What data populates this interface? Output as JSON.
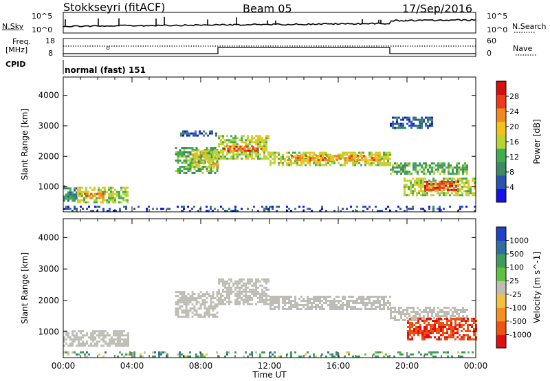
{
  "header": {
    "station": "Stokkseyri (fitACF)",
    "beam": "Beam 05",
    "date": "17/Sep/2016"
  },
  "noise_panel": {
    "left_label": "N.Sky",
    "right_label": "N.Search",
    "left_ticks": [
      "10^5",
      "10^0"
    ],
    "right_ticks": [
      "10^5",
      "10^0"
    ]
  },
  "freq_panel": {
    "left_label_line1": "Freq.",
    "left_label_line2": "[MHz]",
    "right_label": "Nave",
    "left_ticks": [
      "18",
      "8"
    ],
    "right_ticks": [
      "60",
      "0"
    ]
  },
  "cpid_panel": {
    "label": "CPID",
    "program": "normal (fast) 151"
  },
  "x_axis": {
    "title": "Time UT",
    "ticks": [
      "00:00",
      "04:00",
      "08:00",
      "12:00",
      "16:00",
      "20:00",
      "00:00"
    ]
  },
  "chart_data": [
    {
      "type": "heatmap",
      "panel": "power",
      "ylabel": "Slant Range [km]",
      "yticks": [
        1000,
        2000,
        3000,
        4000
      ],
      "ylim": [
        180,
        4600
      ],
      "xlim_hours": [
        0,
        24
      ],
      "colorbar": {
        "label": "Power [dB]",
        "ticks": [
          4,
          8,
          12,
          16,
          20,
          24,
          28
        ],
        "range": [
          0,
          32
        ],
        "colors": [
          "#1212e8",
          "#2a52b0",
          "#3b8a62",
          "#3fae4f",
          "#b8d432",
          "#f2c21b",
          "#f08a1e",
          "#ee3a1a",
          "#d80d0d"
        ]
      },
      "regions": [
        {
          "t": [
            0.0,
            0.8
          ],
          "range": [
            550,
            1050
          ],
          "power": 9
        },
        {
          "t": [
            0.8,
            3.8
          ],
          "range": [
            500,
            1000
          ],
          "power": 16
        },
        {
          "t": [
            1.2,
            2.4
          ],
          "range": [
            600,
            800
          ],
          "power": 24
        },
        {
          "t": [
            6.5,
            9.0
          ],
          "range": [
            1450,
            2300
          ],
          "power": 12
        },
        {
          "t": [
            7.5,
            9.0
          ],
          "range": [
            1600,
            2200
          ],
          "power": 18
        },
        {
          "t": [
            6.8,
            9.0
          ],
          "range": [
            2650,
            2850
          ],
          "power": 6
        },
        {
          "t": [
            9.0,
            12.0
          ],
          "range": [
            1900,
            2700
          ],
          "power": 16
        },
        {
          "t": [
            9.3,
            11.5
          ],
          "range": [
            2150,
            2350
          ],
          "power": 25
        },
        {
          "t": [
            12.0,
            19.0
          ],
          "range": [
            1700,
            2150
          ],
          "power": 16
        },
        {
          "t": [
            13.0,
            18.5
          ],
          "range": [
            1850,
            2050
          ],
          "power": 22
        },
        {
          "t": [
            19.0,
            23.5
          ],
          "range": [
            1400,
            1800
          ],
          "power": 12
        },
        {
          "t": [
            19.0,
            21.5
          ],
          "range": [
            2900,
            3300
          ],
          "power": 6
        },
        {
          "t": [
            19.8,
            24.0
          ],
          "range": [
            750,
            1300
          ],
          "power": 16
        },
        {
          "t": [
            21.0,
            23.0
          ],
          "range": [
            900,
            1200
          ],
          "power": 27
        },
        {
          "t": [
            0.0,
            24.0
          ],
          "range": [
            200,
            380
          ],
          "power": 5
        }
      ]
    },
    {
      "type": "heatmap",
      "panel": "velocity",
      "ylabel": "Slant Range [km]",
      "yticks": [
        1000,
        2000,
        3000,
        4000
      ],
      "ylim": [
        180,
        4600
      ],
      "xlim_hours": [
        0,
        24
      ],
      "colorbar": {
        "label": "Velocity [m s^-1]",
        "ticks": [
          "1000",
          "500",
          "100",
          "25",
          "-25",
          "-100",
          "-500",
          "-1000"
        ],
        "colors": [
          "#2040c8",
          "#2f6fa0",
          "#3f9c58",
          "#60c040",
          "#bdbdb5",
          "#f5c040",
          "#f59020",
          "#f05010",
          "#e01010"
        ]
      },
      "regions": [
        {
          "t": [
            0.0,
            3.8
          ],
          "range": [
            550,
            1050
          ],
          "velocity": 0
        },
        {
          "t": [
            6.5,
            9.0
          ],
          "range": [
            1450,
            2300
          ],
          "velocity": 0
        },
        {
          "t": [
            9.0,
            12.0
          ],
          "range": [
            1900,
            2700
          ],
          "velocity": 0
        },
        {
          "t": [
            12.0,
            19.0
          ],
          "range": [
            1700,
            2150
          ],
          "velocity": 0
        },
        {
          "t": [
            19.0,
            23.5
          ],
          "range": [
            1400,
            1800
          ],
          "velocity": 0
        },
        {
          "t": [
            20.0,
            24.0
          ],
          "range": [
            750,
            1450
          ],
          "velocity": -700
        },
        {
          "t": [
            0.0,
            24.0
          ],
          "range": [
            200,
            380
          ],
          "velocity": 150
        }
      ]
    }
  ]
}
